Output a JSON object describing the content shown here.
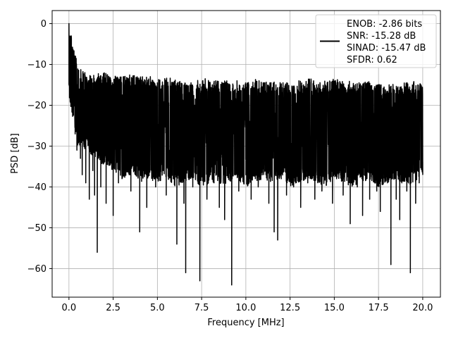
{
  "chart_data": {
    "type": "line",
    "title": "",
    "xlabel": "Frequency [MHz]",
    "ylabel": "PSD [dB]",
    "xlim": [
      -0.95,
      21.0
    ],
    "ylim": [
      -67.0,
      3.2
    ],
    "xticks": [
      0.0,
      2.5,
      5.0,
      7.5,
      10.0,
      12.5,
      15.0,
      17.5,
      20.0
    ],
    "xtick_labels": [
      "0.0",
      "2.5",
      "5.0",
      "7.5",
      "10.0",
      "12.5",
      "15.0",
      "17.5",
      "20.0"
    ],
    "yticks": [
      0,
      -10,
      -20,
      -30,
      -40,
      -50,
      -60
    ],
    "ytick_labels": [
      "0",
      "−10",
      "−20",
      "−30",
      "−40",
      "−50",
      "−60"
    ],
    "grid": true,
    "legend_position": "top-right",
    "series": [
      {
        "color": "#000000",
        "x": [
          0.0,
          0.02,
          0.05,
          0.08,
          0.1,
          0.12,
          0.15,
          0.18,
          0.2,
          0.25,
          0.3,
          0.35,
          0.4,
          0.45,
          0.5,
          0.55,
          0.6,
          0.65,
          0.7,
          0.75,
          0.8,
          0.85,
          0.9,
          0.95,
          1.0,
          1.05,
          1.1,
          1.15,
          1.2,
          1.25,
          1.3,
          1.35,
          1.4,
          1.45,
          1.5,
          1.55,
          1.6,
          1.65,
          1.7,
          1.8,
          1.9,
          2.0,
          2.1,
          2.2,
          2.3,
          2.4,
          2.5,
          2.6,
          2.7,
          2.8,
          2.9,
          3.0,
          3.1,
          3.2,
          3.3,
          3.4,
          3.5,
          3.6,
          3.7,
          3.8,
          3.9,
          4.0,
          4.1,
          4.2,
          4.3,
          4.4,
          4.5,
          4.6,
          4.7,
          4.8,
          4.9,
          5.0,
          5.1,
          5.2,
          5.3,
          5.4,
          5.5,
          5.6,
          5.7,
          5.8,
          5.9,
          6.0,
          6.1,
          6.2,
          6.3,
          6.4,
          6.5,
          6.6,
          6.7,
          6.8,
          6.9,
          7.0,
          7.1,
          7.2,
          7.3,
          7.4,
          7.5,
          7.6,
          7.7,
          7.8,
          7.9,
          8.0,
          8.1,
          8.2,
          8.3,
          8.4,
          8.5,
          8.6,
          8.7,
          8.8,
          8.9,
          9.0,
          9.1,
          9.2,
          9.3,
          9.4,
          9.5,
          9.6,
          9.7,
          9.8,
          9.9,
          10.0,
          10.1,
          10.2,
          10.3,
          10.4,
          10.5,
          10.6,
          10.7,
          10.8,
          10.9,
          11.0,
          11.1,
          11.2,
          11.3,
          11.4,
          11.5,
          11.6,
          11.7,
          11.8,
          11.9,
          12.0,
          12.1,
          12.2,
          12.3,
          12.4,
          12.5,
          12.6,
          12.7,
          12.8,
          12.9,
          13.0,
          13.1,
          13.2,
          13.3,
          13.4,
          13.5,
          13.6,
          13.7,
          13.8,
          13.9,
          14.0,
          14.1,
          14.2,
          14.3,
          14.4,
          14.5,
          14.6,
          14.7,
          14.8,
          14.9,
          15.0,
          15.1,
          15.2,
          15.3,
          15.4,
          15.5,
          15.6,
          15.7,
          15.8,
          15.9,
          16.0,
          16.1,
          16.2,
          16.3,
          16.4,
          16.5,
          16.6,
          16.7,
          16.8,
          16.9,
          17.0,
          17.1,
          17.2,
          17.3,
          17.4,
          17.5,
          17.6,
          17.7,
          17.8,
          17.9,
          18.0,
          18.1,
          18.2,
          18.3,
          18.4,
          18.5,
          18.6,
          18.7,
          18.8,
          18.9,
          19.0,
          19.1,
          19.2,
          19.3,
          19.4,
          19.5,
          19.6,
          19.7,
          19.8,
          19.9,
          20.0
        ],
        "y": [
          0.0,
          -3.0,
          -6.5,
          -10.0,
          -13.5,
          -12.0,
          -17.0,
          -19.0,
          -15.5,
          -22.0,
          -18.0,
          -27.0,
          -21.0,
          -31.0,
          -17.0,
          -29.0,
          -19.0,
          -33.0,
          -14.5,
          -37.0,
          -16.0,
          -30.0,
          -12.0,
          -39.0,
          -18.0,
          -28.0,
          -14.0,
          -43.0,
          -17.0,
          -30.0,
          -13.5,
          -36.0,
          -18.0,
          -42.0,
          -15.0,
          -28.0,
          -56.0,
          -20.0,
          -13.0,
          -40.0,
          -15.5,
          -30.0,
          -44.0,
          -14.0,
          -33.0,
          -19.0,
          -47.0,
          -13.5,
          -29.0,
          -39.0,
          -16.0,
          -31.0,
          -13.0,
          -36.0,
          -22.0,
          -14.5,
          -41.0,
          -17.0,
          -28.0,
          -13.5,
          -35.0,
          -51.0,
          -18.0,
          -30.0,
          -14.0,
          -45.0,
          -21.0,
          -13.0,
          -33.0,
          -19.0,
          -40.0,
          -14.5,
          -28.0,
          -16.0,
          -36.0,
          -20.0,
          -42.0,
          -15.0,
          -31.0,
          -17.5,
          -38.0,
          -14.0,
          -54.0,
          -19.0,
          -27.0,
          -15.0,
          -44.0,
          -61.0,
          -17.0,
          -30.0,
          -14.5,
          -40.0,
          -20.0,
          -16.0,
          -36.0,
          -63.0,
          -15.5,
          -29.0,
          -13.5,
          -43.0,
          -18.0,
          -33.0,
          -15.0,
          -39.0,
          -14.0,
          -28.0,
          -45.0,
          -16.5,
          -32.0,
          -48.0,
          -17.0,
          -30.0,
          -15.0,
          -64.0,
          -18.5,
          -27.0,
          -14.0,
          -41.0,
          -19.0,
          -31.0,
          -16.0,
          -37.0,
          -15.0,
          -29.0,
          -43.0,
          -17.0,
          -34.0,
          -15.5,
          -40.0,
          -18.0,
          -28.0,
          -14.5,
          -36.0,
          -19.0,
          -44.0,
          -16.0,
          -30.0,
          -51.0,
          -15.0,
          -53.0,
          -19.0,
          -38.0,
          -14.5,
          -29.0,
          -42.0,
          -17.0,
          -33.0,
          -15.5,
          -40.0,
          -18.0,
          -27.0,
          -14.0,
          -45.0,
          -17.0,
          -31.0,
          -15.0,
          -39.0,
          -19.0,
          -29.0,
          -16.5,
          -43.0,
          -15.0,
          -34.0,
          -18.0,
          -41.0,
          -16.0,
          -30.0,
          -14.5,
          -38.0,
          -17.0,
          -44.0,
          -15.5,
          -28.0,
          -19.0,
          -36.0,
          -16.0,
          -42.0,
          -17.5,
          -31.0,
          -15.0,
          -49.0,
          -18.0,
          -35.0,
          -16.0,
          -40.0,
          -14.5,
          -29.0,
          -47.0,
          -17.0,
          -37.0,
          -15.5,
          -43.0,
          -18.0,
          -33.0,
          -16.0,
          -41.0,
          -15.0,
          -46.0,
          -19.0,
          -36.0,
          -16.5,
          -39.0,
          -15.0,
          -59.0,
          -17.0,
          -34.0,
          -43.0,
          -16.0,
          -48.0,
          -18.0,
          -38.0,
          -15.5,
          -41.0,
          -17.0,
          -61.0,
          -16.0,
          -36.0,
          -44.0,
          -18.0,
          -39.0,
          -15.0,
          -34.0
        ],
        "y_upper_envelope": [
          0.0,
          -10.0,
          -13.0,
          -12.0,
          -12.0,
          -12.5,
          -13.0,
          -12.5,
          -13.0,
          -13.0,
          -13.5,
          -13.0,
          -13.5,
          -14.0,
          -14.0,
          -13.5,
          -14.0,
          -14.0,
          -14.0,
          -14.5,
          -14.5,
          -13.5,
          -14.5,
          -14.0,
          -14.5,
          -14.5,
          -14.0,
          -13.0,
          -14.5,
          -14.0,
          -13.5,
          -14.0,
          -14.0,
          -14.5,
          -14.0,
          -14.5,
          -15.0,
          -14.5,
          -14.5,
          -14.0,
          -15.0
        ],
        "y_lower_envelope": [
          -18.0,
          -30.0,
          -31.0,
          -33.0,
          -35.0,
          -36.0,
          -38.0,
          -37.0,
          -39.0,
          -38.0,
          -39.0,
          -38.0,
          -40.0,
          -39.0,
          -38.0,
          -40.0,
          -39.0,
          -40.0,
          -39.0,
          -38.0,
          -40.0,
          -39.0,
          -38.0,
          -39.0,
          -38.0,
          -40.0,
          -39.0,
          -38.0,
          -39.0,
          -40.0,
          -38.0,
          -39.0,
          -40.0,
          -39.0,
          -38.0,
          -40.0,
          -39.0,
          -38.0,
          -40.0,
          -39.0,
          -38.0
        ]
      }
    ],
    "legend": {
      "lines": [
        "ENOB: -2.86 bits",
        "SNR: -15.28 dB",
        "SINAD: -15.47 dB",
        "SFDR: 0.62"
      ]
    }
  }
}
